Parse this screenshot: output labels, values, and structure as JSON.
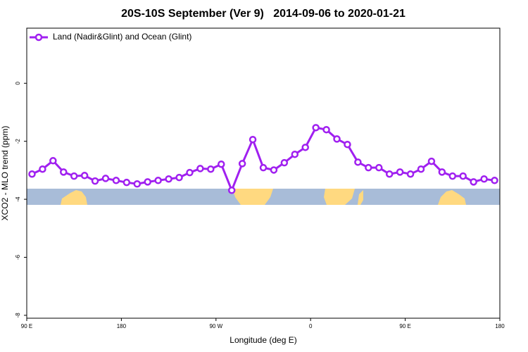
{
  "chart_data": {
    "type": "line",
    "title": "20S-10S September (Ver 9)   2014-09-06 to 2020-01-21",
    "x_label": "Longitude (deg E)",
    "y_label": "XCO2 - MLO trend (ppm)",
    "x": [
      95,
      105,
      115,
      125,
      135,
      145,
      155,
      165,
      175,
      185,
      195,
      205,
      215,
      225,
      235,
      245,
      255,
      265,
      275,
      285,
      295,
      305,
      315,
      325,
      335,
      345,
      355,
      365,
      375,
      385,
      395,
      405,
      415,
      425,
      435,
      445,
      455,
      465,
      475,
      485,
      495,
      505,
      515,
      525,
      535
    ],
    "series": [
      {
        "name": "Land (Nadir&Glint) and Ocean (Glint)",
        "color": "#a020f0",
        "values": [
          -3.13,
          -2.96,
          -2.67,
          -3.06,
          -3.2,
          -3.18,
          -3.37,
          -3.28,
          -3.35,
          -3.42,
          -3.47,
          -3.4,
          -3.35,
          -3.3,
          -3.25,
          -3.08,
          -2.94,
          -2.96,
          -2.79,
          -3.69,
          -2.77,
          -1.94,
          -2.91,
          -2.99,
          -2.74,
          -2.45,
          -2.21,
          -1.53,
          -1.6,
          -1.92,
          -2.11,
          -2.72,
          -2.91,
          -2.91,
          -3.13,
          -3.06,
          -3.13,
          -2.96,
          -2.69,
          -3.06,
          -3.2,
          -3.2,
          -3.4,
          -3.3,
          -3.35
        ]
      }
    ],
    "xlim": [
      90,
      540
    ],
    "xticks": [
      {
        "value": 90,
        "label": "90 E"
      },
      180,
      {
        "value": 270,
        "label": "90 W"
      },
      {
        "value": 360,
        "label": "0"
      },
      {
        "value": 450,
        "label": "90 E"
      },
      {
        "value": 540,
        "label": "180"
      }
    ],
    "ylim": [
      -8.1,
      1.9
    ],
    "yticks": [
      0,
      -2,
      -4,
      -6,
      -8
    ],
    "legend": "top-left"
  }
}
